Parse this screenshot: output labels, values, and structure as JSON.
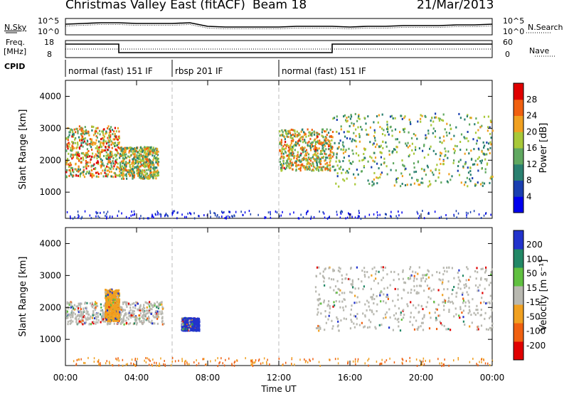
{
  "header": {
    "station": "Christmas Valley East (fitACF)",
    "beam": "Beam 18",
    "date": "21/Mar/2013"
  },
  "top_panels": {
    "nsky_label": "N.Sky",
    "nsky_ticks": [
      "10^5",
      "10^0"
    ],
    "nsearch_label": "N.Search",
    "nsearch_ticks": [
      "10^5",
      "10^0"
    ],
    "freq_label_1": "Freq.",
    "freq_label_2": "[MHz]",
    "freq_ticks": [
      "18",
      "8"
    ],
    "nave_label": "Nave",
    "nave_ticks": [
      "60",
      "0"
    ],
    "cpid_label": "CPID",
    "cpid_segments": [
      {
        "label": "normal (fast) 151 IF",
        "start": 0,
        "end": 6
      },
      {
        "label": "rbsp 201 IF",
        "start": 6,
        "end": 12
      },
      {
        "label": "normal (fast) 151 IF",
        "start": 12,
        "end": 24
      }
    ]
  },
  "chart_data": [
    {
      "type": "heatmap",
      "name": "power",
      "xlabel": "Time UT",
      "ylabel": "Slant Range [km]",
      "xlim": [
        0,
        24
      ],
      "ylim": [
        180,
        4500
      ],
      "xticks": [
        "00:00",
        "04:00",
        "08:00",
        "12:00",
        "16:00",
        "20:00",
        "00:00"
      ],
      "yticks": [
        1000,
        2000,
        3000,
        4000
      ],
      "colorbar_label": "Power [dB]",
      "colorbar_ticks": [
        4,
        8,
        12,
        16,
        20,
        24,
        28
      ],
      "colorbar_range": [
        0,
        32
      ],
      "colors": [
        "#0000ee",
        "#1a3fb0",
        "#2a8070",
        "#60a860",
        "#a8c838",
        "#f0a020",
        "#f06010",
        "#e00000"
      ],
      "features": [
        {
          "name": "early echo band",
          "time": [
            0.0,
            3.0
          ],
          "range_km": [
            1500,
            3100
          ],
          "peak_db": 28
        },
        {
          "name": "post-04 band",
          "time": [
            3.0,
            5.2
          ],
          "range_km": [
            1450,
            2450
          ],
          "peak_db": 24
        },
        {
          "name": "afternoon ramp",
          "time": [
            12.0,
            15.0
          ],
          "range_km": [
            1700,
            3000
          ],
          "peak_db": 26
        },
        {
          "name": "evening arc",
          "time": [
            15.0,
            24.0
          ],
          "range_km": [
            1200,
            3500
          ],
          "peak_db": 20
        }
      ]
    },
    {
      "type": "heatmap",
      "name": "velocity",
      "xlabel": "Time UT",
      "ylabel": "Slant Range [km]",
      "xlim": [
        0,
        24
      ],
      "ylim": [
        180,
        4500
      ],
      "xticks": [
        "00:00",
        "04:00",
        "08:00",
        "12:00",
        "16:00",
        "20:00",
        "00:00"
      ],
      "yticks": [
        1000,
        2000,
        3000,
        4000
      ],
      "colorbar_label": "Velocity [m s⁻¹]",
      "colorbar_ticks": [
        200,
        100,
        50,
        15,
        -15,
        -50,
        -100,
        -200
      ],
      "colors": [
        "#2233cc",
        "#228866",
        "#60c040",
        "#b8b8b0",
        "#f0a020",
        "#f06010",
        "#e00000"
      ],
      "features": [
        {
          "name": "ground scatter band",
          "time": [
            0.0,
            5.5
          ],
          "range_km": [
            1500,
            2200
          ],
          "velocity": 0
        },
        {
          "name": "negative velocity patch",
          "time": [
            2.2,
            3.0
          ],
          "range_km": [
            1600,
            2600
          ],
          "velocity": -50
        },
        {
          "name": "positive velocity patch",
          "time": [
            6.5,
            7.5
          ],
          "range_km": [
            1300,
            1700
          ],
          "velocity": 200
        },
        {
          "name": "ground scatter arc",
          "time": [
            14.0,
            24.0
          ],
          "range_km": [
            1300,
            3300
          ],
          "velocity": 0
        }
      ]
    }
  ]
}
